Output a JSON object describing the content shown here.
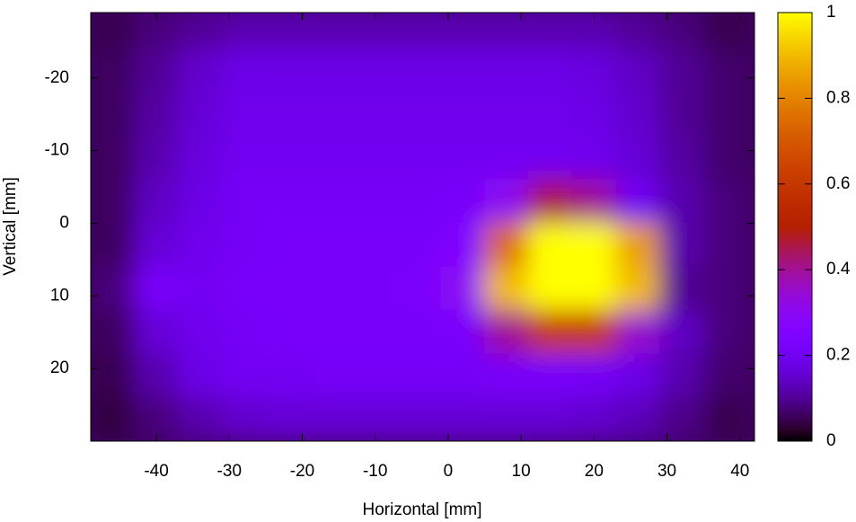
{
  "chart_data": {
    "type": "heatmap",
    "x_label": "Horizontal [mm]",
    "y_label": "Vertical [mm]",
    "xlim": [
      -49,
      42
    ],
    "ylim": [
      -29,
      30
    ],
    "y_inverted": true,
    "xticks": [
      -40,
      -30,
      -20,
      -10,
      0,
      10,
      20,
      30,
      40
    ],
    "yticks": [
      -20,
      -10,
      0,
      10,
      20
    ],
    "zlim": [
      0,
      1
    ],
    "zticks": [
      0,
      0.2,
      0.4,
      0.6,
      0.8,
      1
    ],
    "colormap": "gnuplot",
    "x": [
      -46,
      -40,
      -34,
      -28,
      -22,
      -16,
      -10,
      -4,
      2,
      8,
      14,
      20,
      26,
      32,
      38
    ],
    "y": [
      -27,
      -21,
      -15,
      -9,
      -3,
      3,
      9,
      15,
      21,
      27
    ],
    "z": [
      [
        0.05,
        0.08,
        0.1,
        0.12,
        0.12,
        0.12,
        0.12,
        0.12,
        0.12,
        0.12,
        0.12,
        0.12,
        0.1,
        0.08,
        0.05
      ],
      [
        0.06,
        0.1,
        0.15,
        0.18,
        0.18,
        0.18,
        0.18,
        0.18,
        0.18,
        0.18,
        0.18,
        0.17,
        0.14,
        0.1,
        0.07
      ],
      [
        0.06,
        0.11,
        0.16,
        0.19,
        0.19,
        0.19,
        0.19,
        0.19,
        0.19,
        0.19,
        0.19,
        0.18,
        0.15,
        0.1,
        0.07
      ],
      [
        0.06,
        0.12,
        0.17,
        0.2,
        0.2,
        0.2,
        0.2,
        0.2,
        0.2,
        0.2,
        0.2,
        0.19,
        0.16,
        0.11,
        0.07
      ],
      [
        0.06,
        0.14,
        0.18,
        0.21,
        0.21,
        0.21,
        0.21,
        0.21,
        0.22,
        0.3,
        0.45,
        0.4,
        0.2,
        0.12,
        0.08
      ],
      [
        0.06,
        0.16,
        0.19,
        0.21,
        0.22,
        0.22,
        0.22,
        0.22,
        0.25,
        0.75,
        1,
        1,
        0.85,
        0.12,
        0.08
      ],
      [
        0.08,
        0.22,
        0.2,
        0.22,
        0.22,
        0.22,
        0.22,
        0.23,
        0.3,
        0.9,
        1,
        1,
        0.9,
        0.1,
        0.08
      ],
      [
        0.06,
        0.16,
        0.19,
        0.21,
        0.22,
        0.22,
        0.22,
        0.22,
        0.23,
        0.4,
        0.6,
        0.6,
        0.35,
        0.14,
        0.08
      ],
      [
        0.05,
        0.12,
        0.18,
        0.2,
        0.2,
        0.21,
        0.21,
        0.21,
        0.21,
        0.22,
        0.22,
        0.21,
        0.18,
        0.12,
        0.07
      ],
      [
        0.04,
        0.08,
        0.12,
        0.15,
        0.16,
        0.16,
        0.16,
        0.16,
        0.16,
        0.16,
        0.16,
        0.15,
        0.13,
        0.09,
        0.05
      ]
    ]
  }
}
